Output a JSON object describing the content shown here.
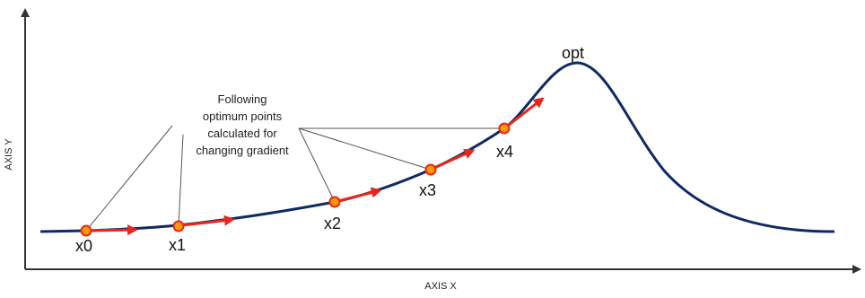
{
  "axes": {
    "x_label": "AXIS X",
    "y_label": "AXIS Y"
  },
  "annotation": {
    "lines": [
      "Following",
      "optimum points",
      "calculated for",
      "changing gradient"
    ]
  },
  "points": [
    {
      "label": "x0"
    },
    {
      "label": "x1"
    },
    {
      "label": "x2"
    },
    {
      "label": "x3"
    },
    {
      "label": "x4"
    }
  ],
  "optimum": {
    "label": "opt"
  },
  "colors": {
    "curve": "#0d2a63",
    "arrow": "#e8261b",
    "point_fill": "#ff9900",
    "point_stroke": "#e8261b",
    "axis": "#333333",
    "callout": "#555555"
  }
}
